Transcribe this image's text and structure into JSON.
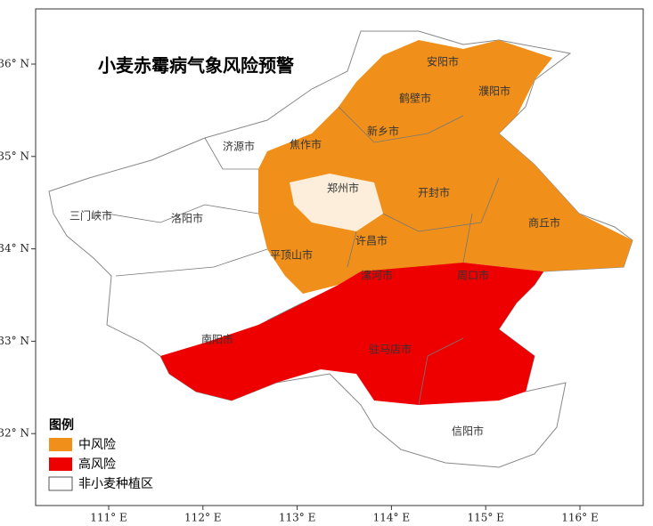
{
  "title": "小麦赤霉病气象风险预警",
  "cities": [
    "安阳市",
    "濮阳市",
    "鹤壁市",
    "新乡市",
    "焦作市",
    "济源市",
    "郑州市",
    "开封市",
    "商丘市",
    "三门峡市",
    "洛阳市",
    "许昌市",
    "平顶山市",
    "漯河市",
    "周口市",
    "南阳市",
    "驻马店市",
    "信阳市"
  ],
  "legend": {
    "title": "图例",
    "items": [
      "中风险",
      "高风险",
      "非小麦种植区"
    ]
  },
  "axes": {
    "x_ticks": [
      "111° E",
      "112° E",
      "113° E",
      "114° E",
      "115° E",
      "116° E"
    ],
    "y_ticks": [
      "36° N",
      "35° N",
      "34° N",
      "33° N",
      "32° N"
    ]
  }
}
